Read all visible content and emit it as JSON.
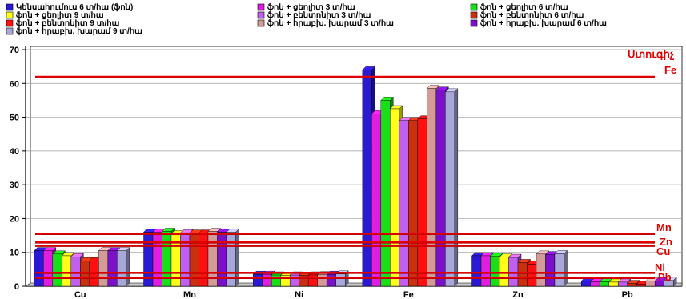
{
  "chart_data": {
    "type": "bar",
    "categories": [
      "Cu",
      "Mn",
      "Ni",
      "Fe",
      "Zn",
      "Pb"
    ],
    "ylim": [
      0,
      70
    ],
    "yticks": [
      0,
      10,
      20,
      30,
      40,
      50,
      60,
      70
    ],
    "grid": true,
    "legend_position": "top",
    "series": [
      {
        "name": "Կենսահումուս 6 տ/հա (ֆոն)",
        "color": "#2a1ad6",
        "values": [
          10.5,
          16.0,
          3.5,
          64.0,
          9.0,
          1.5
        ]
      },
      {
        "name": "ֆոն + ցեոլիտ 3 տ/հա",
        "color": "#e01ee0",
        "values": [
          10.5,
          16.0,
          3.5,
          51.0,
          9.0,
          1.3
        ]
      },
      {
        "name": "ֆոն + ցեոլիտ 6 տ/հա",
        "color": "#18e018",
        "values": [
          9.5,
          16.2,
          3.3,
          55.0,
          8.8,
          1.3
        ]
      },
      {
        "name": "ֆոն + ցեոլիտ 9 տ/հա",
        "color": "#ffff1a",
        "values": [
          9.0,
          15.5,
          3.2,
          52.5,
          8.6,
          1.2
        ]
      },
      {
        "name": "ֆոն + բենտոնիտ 3 տ/հա",
        "color": "#c060f0",
        "values": [
          8.7,
          15.8,
          3.3,
          49.0,
          8.5,
          1.2
        ]
      },
      {
        "name": "ֆոն + բենտոնիտ 6 տ/հա",
        "color": "#c83010",
        "values": [
          7.5,
          15.7,
          3.2,
          49.0,
          7.0,
          0.8
        ]
      },
      {
        "name": "ֆոն + բենտոնիտ 9 տ/հա",
        "color": "#ff1010",
        "values": [
          7.5,
          15.7,
          3.3,
          49.5,
          6.5,
          0.6
        ]
      },
      {
        "name": "ֆոն + հրաբխ. խարամ 3 տ/հա",
        "color": "#d49a98",
        "values": [
          10.5,
          16.2,
          3.4,
          58.5,
          9.5,
          1.5
        ]
      },
      {
        "name": "ֆոն + հրաբխ. խարամ 6 տ/հա",
        "color": "#7a10c8",
        "values": [
          10.5,
          16.0,
          3.5,
          58.0,
          9.3,
          1.6
        ]
      },
      {
        "name": "ֆոն + հրաբխ. խարամ 9 տ/հա",
        "color": "#a8a8d8",
        "values": [
          10.5,
          16.0,
          3.6,
          57.5,
          9.6,
          1.7
        ]
      }
    ],
    "reference_lines": [
      {
        "label": "Fe",
        "value": 62
      },
      {
        "label": "Mn",
        "value": 15.5
      },
      {
        "label": "Zn",
        "value": 13
      },
      {
        "label": "Cu",
        "value": 12
      },
      {
        "label": "Ni",
        "value": 4
      },
      {
        "label": "Pb",
        "value": 2.5
      }
    ],
    "reference_title": "Ստուգիչ",
    "reference_color": "#e00000"
  }
}
